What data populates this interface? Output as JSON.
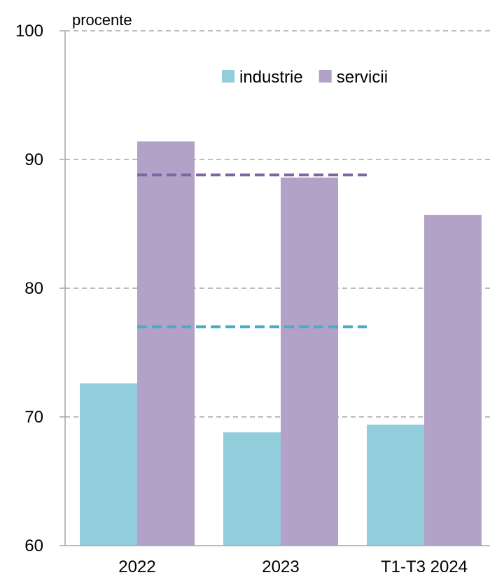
{
  "chart_data": {
    "type": "bar",
    "unit_label": "procente",
    "categories": [
      "2022",
      "2023",
      "T1-T3 2024"
    ],
    "series": [
      {
        "name": "industrie",
        "color": "#92cddc",
        "values": [
          72.6,
          68.8,
          69.4
        ]
      },
      {
        "name": "servicii",
        "color": "#b3a2c7",
        "values": [
          91.4,
          88.6,
          85.7
        ]
      }
    ],
    "reference_lines": [
      {
        "series": "servicii",
        "value": 88.8,
        "color": "#8064a2",
        "style": "dashed",
        "from_category": "2022",
        "to_category": "T1-T3 2024"
      },
      {
        "series": "industrie",
        "value": 77.0,
        "color": "#4bacc6",
        "style": "dashed",
        "from_category": "2022",
        "to_category": "T1-T3 2024"
      }
    ],
    "ylim": [
      60,
      100
    ],
    "yticks": [
      "60",
      "70",
      "80",
      "90",
      "100"
    ],
    "grid": true,
    "legend_position": "top-right"
  }
}
